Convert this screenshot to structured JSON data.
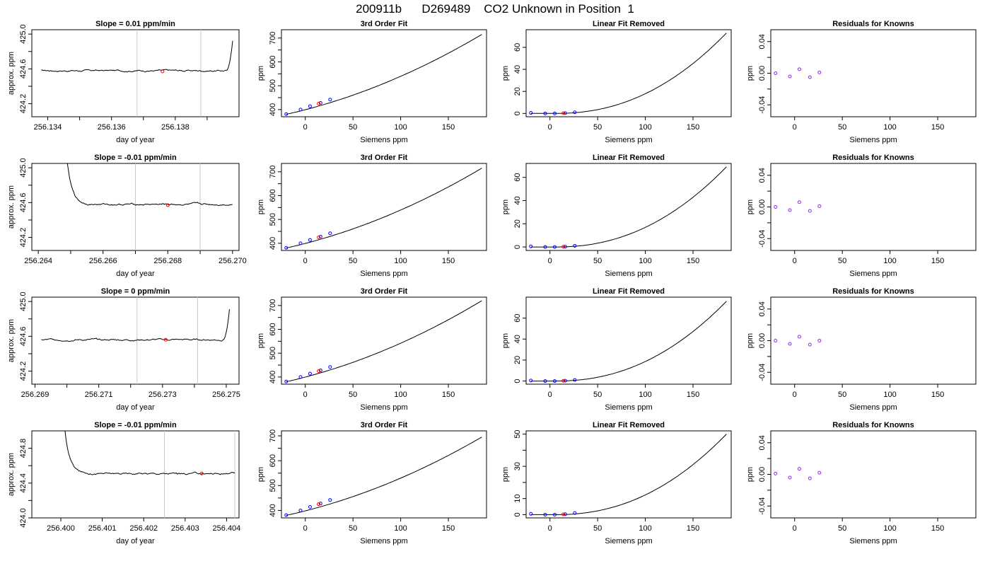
{
  "figure": {
    "title": "200911b      D269489    CO2 Unknown in Position  1"
  },
  "colors": {
    "trace": "#000000",
    "known_points": "#0000ff",
    "unknown_point": "#ff0000",
    "residual_points": "#8a2be2",
    "marker_lines": "#c8c8c8",
    "frame": "#000000"
  },
  "chart_data": [
    {
      "row": 1,
      "col": 1,
      "type": "line",
      "title": "Slope =  0.01  ppm/min",
      "xlabel": "day of year",
      "ylabel": "approx. ppm",
      "xlim": [
        256.1335,
        256.14
      ],
      "ylim": [
        424.05,
        425.05
      ],
      "xticks": [
        256.134,
        256.135,
        256.136,
        256.137,
        256.138,
        256.139
      ],
      "xtick_labels": [
        "256.134",
        "",
        "256.136",
        "",
        "256.138",
        ""
      ],
      "yticks": [
        424.2,
        424.4,
        424.6,
        424.8,
        425.0
      ],
      "ytick_labels": [
        "424.2",
        "",
        "424.6",
        "",
        "425.0"
      ],
      "vlines": [
        256.1368,
        256.1388
      ],
      "trace": {
        "x_start": 256.1338,
        "x_end": 256.1398,
        "level": 424.58,
        "rise_start": 256.1396,
        "rise_end_y": 425.05,
        "rise_end_x": 256.1399
      },
      "marker": {
        "x": 256.1376,
        "y": 424.57
      }
    },
    {
      "row": 1,
      "col": 2,
      "type": "line",
      "title": "3rd Order Fit",
      "xlabel": "Siemens ppm",
      "ylabel": "ppm",
      "xlim": [
        -25,
        190
      ],
      "ylim": [
        370,
        735
      ],
      "xticks": [
        0,
        50,
        100,
        150
      ],
      "xtick_labels": [
        "0",
        "50",
        "100",
        "150"
      ],
      "yticks": [
        400,
        450,
        500,
        550,
        600,
        650,
        700
      ],
      "ytick_labels": [
        "400",
        "",
        "500",
        "",
        "600",
        "",
        "700"
      ],
      "curve": {
        "x0": -20,
        "x1": 185,
        "y0": 380,
        "y1": 715
      },
      "knowns": [
        [
          -20,
          381
        ],
        [
          -5,
          400
        ],
        [
          5,
          414
        ],
        [
          16,
          428
        ],
        [
          26,
          442
        ]
      ],
      "unknown": [
        [
          14,
          425
        ]
      ]
    },
    {
      "row": 1,
      "col": 3,
      "type": "line",
      "title": "Linear Fit Removed",
      "xlabel": "Siemens ppm",
      "ylabel": "ppm",
      "xlim": [
        -25,
        190
      ],
      "ylim": [
        -3,
        76
      ],
      "xticks": [
        0,
        50,
        100,
        150
      ],
      "xtick_labels": [
        "0",
        "50",
        "100",
        "150"
      ],
      "yticks": [
        0,
        20,
        40,
        60
      ],
      "ytick_labels": [
        "0",
        "20",
        "40",
        "60"
      ],
      "curve": {
        "x0": -20,
        "x1": 185,
        "ymax": 73
      },
      "knowns": [
        [
          -20,
          0.5
        ],
        [
          -5,
          0.0
        ],
        [
          5,
          0.0
        ],
        [
          16,
          0.3
        ],
        [
          26,
          1.0
        ]
      ],
      "unknown": [
        [
          14,
          0.2
        ]
      ]
    },
    {
      "row": 1,
      "col": 4,
      "type": "scatter",
      "title": "Residuals for Knowns",
      "xlabel": "Siemens ppm",
      "ylabel": "ppm",
      "xlim": [
        -25,
        190
      ],
      "ylim": [
        -0.055,
        0.055
      ],
      "xticks": [
        0,
        50,
        100,
        150
      ],
      "xtick_labels": [
        "0",
        "50",
        "100",
        "150"
      ],
      "yticks": [
        -0.04,
        -0.02,
        0.0,
        0.02,
        0.04
      ],
      "ytick_labels": [
        "-0.04",
        "",
        "0.00",
        "",
        "0.04"
      ],
      "points": [
        [
          -20,
          0.0
        ],
        [
          -5,
          -0.004
        ],
        [
          5,
          0.005
        ],
        [
          16,
          -0.005
        ],
        [
          26,
          0.001
        ]
      ]
    },
    {
      "row": 2,
      "col": 1,
      "type": "line",
      "title": "Slope =  -0.01  ppm/min",
      "xlabel": "day of year",
      "ylabel": "approx. ppm",
      "xlim": [
        256.2638,
        256.2702
      ],
      "ylim": [
        424.05,
        425.05
      ],
      "xticks": [
        256.264,
        256.265,
        256.266,
        256.267,
        256.268,
        256.269,
        256.27
      ],
      "xtick_labels": [
        "256.264",
        "",
        "256.266",
        "",
        "256.268",
        "",
        "256.270"
      ],
      "yticks": [
        424.2,
        424.4,
        424.6,
        424.8,
        425.0
      ],
      "ytick_labels": [
        "424.2",
        "",
        "424.6",
        "",
        "425.0"
      ],
      "vlines": [
        256.267,
        256.269
      ],
      "trace": {
        "x_start": 256.2648,
        "x_end": 256.27,
        "level": 424.58,
        "decay_start_x": 256.2649,
        "decay_start_y": 425.05,
        "decay_tau": 0.00015
      },
      "marker": {
        "x": 256.268,
        "y": 424.57
      }
    },
    {
      "row": 2,
      "col": 2,
      "type": "line",
      "title": "3rd Order Fit",
      "xlabel": "Siemens ppm",
      "ylabel": "ppm",
      "xlim": [
        -25,
        190
      ],
      "ylim": [
        370,
        735
      ],
      "xticks": [
        0,
        50,
        100,
        150
      ],
      "xtick_labels": [
        "0",
        "50",
        "100",
        "150"
      ],
      "yticks": [
        400,
        450,
        500,
        550,
        600,
        650,
        700
      ],
      "ytick_labels": [
        "400",
        "",
        "500",
        "",
        "600",
        "",
        "700"
      ],
      "curve": {
        "x0": -20,
        "x1": 185,
        "y0": 380,
        "y1": 715
      },
      "knowns": [
        [
          -20,
          381
        ],
        [
          -5,
          400
        ],
        [
          5,
          414
        ],
        [
          16,
          428
        ],
        [
          26,
          442
        ]
      ],
      "unknown": [
        [
          14,
          425
        ]
      ]
    },
    {
      "row": 2,
      "col": 3,
      "type": "line",
      "title": "Linear Fit Removed",
      "xlabel": "Siemens ppm",
      "ylabel": "ppm",
      "xlim": [
        -25,
        190
      ],
      "ylim": [
        -3,
        72
      ],
      "xticks": [
        0,
        50,
        100,
        150
      ],
      "xtick_labels": [
        "0",
        "50",
        "100",
        "150"
      ],
      "yticks": [
        0,
        20,
        40,
        60
      ],
      "ytick_labels": [
        "0",
        "20",
        "40",
        "60"
      ],
      "curve": {
        "x0": -20,
        "x1": 185,
        "ymax": 69
      },
      "knowns": [
        [
          -20,
          0.5
        ],
        [
          -5,
          0.0
        ],
        [
          5,
          0.0
        ],
        [
          16,
          0.3
        ],
        [
          26,
          1.0
        ]
      ],
      "unknown": [
        [
          14,
          0.2
        ]
      ]
    },
    {
      "row": 2,
      "col": 4,
      "type": "scatter",
      "title": "Residuals for Knowns",
      "xlabel": "Siemens ppm",
      "ylabel": "ppm",
      "xlim": [
        -25,
        190
      ],
      "ylim": [
        -0.055,
        0.055
      ],
      "xticks": [
        0,
        50,
        100,
        150
      ],
      "xtick_labels": [
        "0",
        "50",
        "100",
        "150"
      ],
      "yticks": [
        -0.04,
        -0.02,
        0.0,
        0.02,
        0.04
      ],
      "ytick_labels": [
        "-0.04",
        "",
        "0.00",
        "",
        "0.04"
      ],
      "points": [
        [
          -20,
          0.0
        ],
        [
          -5,
          -0.004
        ],
        [
          5,
          0.006
        ],
        [
          16,
          -0.005
        ],
        [
          26,
          0.001
        ]
      ]
    },
    {
      "row": 3,
      "col": 1,
      "type": "line",
      "title": "Slope =  0  ppm/min",
      "xlabel": "day of year",
      "ylabel": "approx. ppm",
      "xlim": [
        256.2689,
        256.2754
      ],
      "ylim": [
        424.05,
        425.05
      ],
      "xticks": [
        256.269,
        256.27,
        256.271,
        256.272,
        256.273,
        256.274,
        256.275
      ],
      "xtick_labels": [
        "256.269",
        "",
        "256.271",
        "",
        "256.273",
        "",
        "256.275"
      ],
      "yticks": [
        424.2,
        424.4,
        424.6,
        424.8,
        425.0
      ],
      "ytick_labels": [
        "424.2",
        "",
        "424.6",
        "",
        "425.0"
      ],
      "vlines": [
        256.2722,
        256.2741
      ],
      "trace": {
        "x_start": 256.2692,
        "x_end": 256.2751,
        "level": 424.56,
        "rise_start": 256.2749,
        "rise_end_y": 425.05,
        "rise_end_x": 256.2752
      },
      "marker": {
        "x": 256.2731,
        "y": 424.56
      }
    },
    {
      "row": 3,
      "col": 2,
      "type": "line",
      "title": "3rd Order Fit",
      "xlabel": "Siemens ppm",
      "ylabel": "ppm",
      "xlim": [
        -25,
        190
      ],
      "ylim": [
        370,
        735
      ],
      "xticks": [
        0,
        50,
        100,
        150
      ],
      "xtick_labels": [
        "0",
        "50",
        "100",
        "150"
      ],
      "yticks": [
        400,
        450,
        500,
        550,
        600,
        650,
        700
      ],
      "ytick_labels": [
        "400",
        "",
        "500",
        "",
        "600",
        "",
        "700"
      ],
      "curve": {
        "x0": -20,
        "x1": 185,
        "y0": 380,
        "y1": 720
      },
      "knowns": [
        [
          -20,
          381
        ],
        [
          -5,
          400
        ],
        [
          5,
          414
        ],
        [
          16,
          428
        ],
        [
          26,
          442
        ]
      ],
      "unknown": [
        [
          14,
          425
        ]
      ]
    },
    {
      "row": 3,
      "col": 3,
      "type": "line",
      "title": "Linear Fit Removed",
      "xlabel": "Siemens ppm",
      "ylabel": "ppm",
      "xlim": [
        -25,
        190
      ],
      "ylim": [
        -3,
        80
      ],
      "xticks": [
        0,
        50,
        100,
        150
      ],
      "xtick_labels": [
        "0",
        "50",
        "100",
        "150"
      ],
      "yticks": [
        0,
        20,
        40,
        60
      ],
      "ytick_labels": [
        "0",
        "20",
        "40",
        "60"
      ],
      "curve": {
        "x0": -20,
        "x1": 185,
        "ymax": 76
      },
      "knowns": [
        [
          -20,
          0.5
        ],
        [
          -5,
          0.0
        ],
        [
          5,
          0.0
        ],
        [
          16,
          0.3
        ],
        [
          26,
          1.0
        ]
      ],
      "unknown": [
        [
          14,
          0.2
        ]
      ]
    },
    {
      "row": 3,
      "col": 4,
      "type": "scatter",
      "title": "Residuals for Knowns",
      "xlabel": "Siemens ppm",
      "ylabel": "ppm",
      "xlim": [
        -25,
        190
      ],
      "ylim": [
        -0.055,
        0.055
      ],
      "xticks": [
        0,
        50,
        100,
        150
      ],
      "xtick_labels": [
        "0",
        "50",
        "100",
        "150"
      ],
      "yticks": [
        -0.04,
        -0.02,
        0.0,
        0.02,
        0.04
      ],
      "ytick_labels": [
        "-0.04",
        "",
        "0.00",
        "",
        "0.04"
      ],
      "points": [
        [
          -20,
          0.0
        ],
        [
          -5,
          -0.004
        ],
        [
          5,
          0.005
        ],
        [
          16,
          -0.005
        ],
        [
          26,
          0.0
        ]
      ]
    },
    {
      "row": 4,
      "col": 1,
      "type": "line",
      "title": "Slope =  -0.01  ppm/min",
      "xlabel": "day of year",
      "ylabel": "approx. ppm",
      "xlim": [
        256.3993,
        256.4043
      ],
      "ylim": [
        424.0,
        425.0
      ],
      "xticks": [
        256.4,
        256.401,
        256.402,
        256.403,
        256.404
      ],
      "xtick_labels": [
        "256.400",
        "256.401",
        "256.402",
        "256.403",
        "256.404"
      ],
      "yticks": [
        424.0,
        424.2,
        424.4,
        424.6,
        424.8
      ],
      "ytick_labels": [
        "424.0",
        "",
        "424.4",
        "",
        "424.8"
      ],
      "vlines": [
        256.4025,
        256.4042
      ],
      "trace": {
        "x_start": 256.4,
        "x_end": 256.4042,
        "level": 424.51,
        "decay_start_x": 256.4001,
        "decay_start_y": 425.0,
        "decay_tau": 0.00012
      },
      "marker": {
        "x": 256.4034,
        "y": 424.51
      }
    },
    {
      "row": 4,
      "col": 2,
      "type": "line",
      "title": "3rd Order Fit",
      "xlabel": "Siemens ppm",
      "ylabel": "ppm",
      "xlim": [
        -25,
        190
      ],
      "ylim": [
        370,
        720
      ],
      "xticks": [
        0,
        50,
        100,
        150
      ],
      "xtick_labels": [
        "0",
        "50",
        "100",
        "150"
      ],
      "yticks": [
        400,
        450,
        500,
        550,
        600,
        650,
        700
      ],
      "ytick_labels": [
        "400",
        "",
        "500",
        "",
        "600",
        "",
        "700"
      ],
      "curve": {
        "x0": -20,
        "x1": 185,
        "y0": 380,
        "y1": 695
      },
      "knowns": [
        [
          -20,
          381
        ],
        [
          -5,
          400
        ],
        [
          5,
          414
        ],
        [
          16,
          428
        ],
        [
          26,
          442
        ]
      ],
      "unknown": [
        [
          14,
          425
        ]
      ]
    },
    {
      "row": 4,
      "col": 3,
      "type": "line",
      "title": "Linear Fit Removed",
      "xlabel": "Siemens ppm",
      "ylabel": "ppm",
      "xlim": [
        -25,
        190
      ],
      "ylim": [
        -2,
        52
      ],
      "xticks": [
        0,
        50,
        100,
        150
      ],
      "xtick_labels": [
        "0",
        "50",
        "100",
        "150"
      ],
      "yticks": [
        0,
        10,
        20,
        30,
        40,
        50
      ],
      "ytick_labels": [
        "0",
        "10",
        "",
        "30",
        "",
        "50"
      ],
      "curve": {
        "x0": -20,
        "x1": 185,
        "ymax": 50
      },
      "knowns": [
        [
          -20,
          0.5
        ],
        [
          -5,
          0.0
        ],
        [
          5,
          0.0
        ],
        [
          16,
          0.3
        ],
        [
          26,
          1.0
        ]
      ],
      "unknown": [
        [
          14,
          0.2
        ]
      ]
    },
    {
      "row": 4,
      "col": 4,
      "type": "scatter",
      "title": "Residuals for Knowns",
      "xlabel": "Siemens ppm",
      "ylabel": "ppm",
      "xlim": [
        -25,
        190
      ],
      "ylim": [
        -0.055,
        0.055
      ],
      "xticks": [
        0,
        50,
        100,
        150
      ],
      "xtick_labels": [
        "0",
        "50",
        "100",
        "150"
      ],
      "yticks": [
        -0.04,
        -0.02,
        0.0,
        0.02,
        0.04
      ],
      "ytick_labels": [
        "-0.04",
        "",
        "0.00",
        "",
        "0.04"
      ],
      "points": [
        [
          -20,
          0.001
        ],
        [
          -5,
          -0.004
        ],
        [
          5,
          0.007
        ],
        [
          16,
          -0.005
        ],
        [
          26,
          0.002
        ]
      ]
    }
  ]
}
